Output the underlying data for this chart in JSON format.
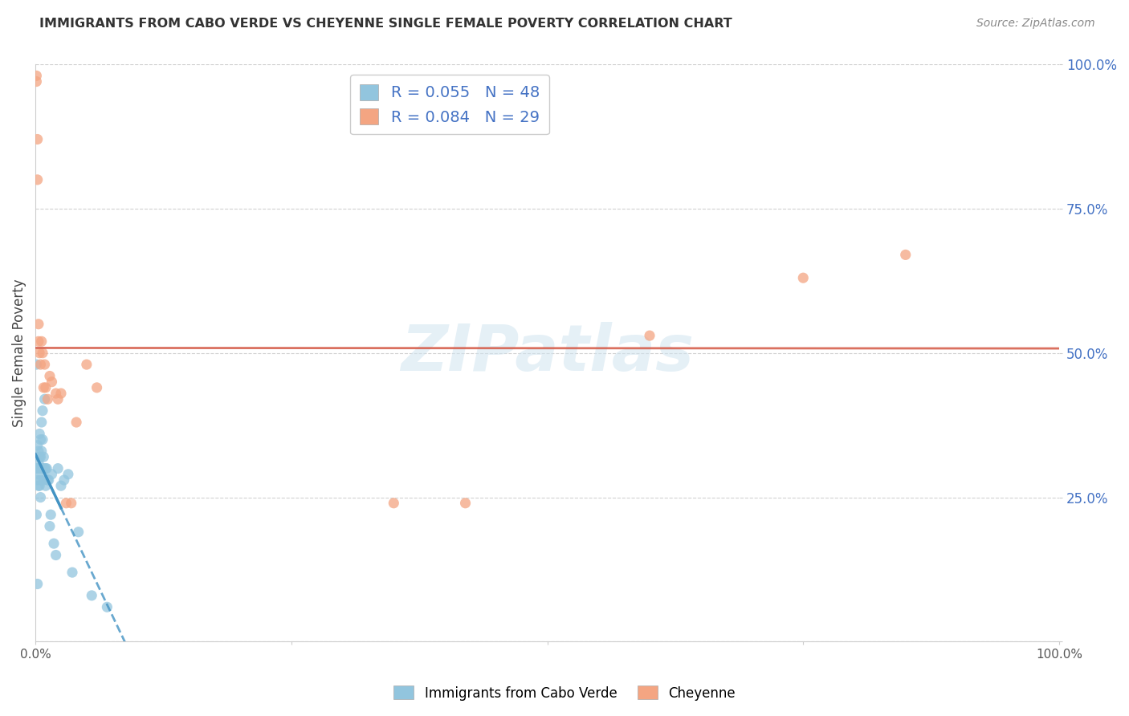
{
  "title": "IMMIGRANTS FROM CABO VERDE VS CHEYENNE SINGLE FEMALE POVERTY CORRELATION CHART",
  "source": "Source: ZipAtlas.com",
  "ylabel": "Single Female Poverty",
  "legend_label1": "Immigrants from Cabo Verde",
  "legend_label2": "Cheyenne",
  "R1": 0.055,
  "N1": 48,
  "R2": 0.084,
  "N2": 29,
  "blue_color": "#92c5de",
  "pink_color": "#f4a582",
  "blue_line_color": "#4393c3",
  "pink_line_color": "#d6604d",
  "blue_scatter_x": [
    0.001,
    0.001,
    0.001,
    0.002,
    0.002,
    0.002,
    0.002,
    0.003,
    0.003,
    0.003,
    0.003,
    0.004,
    0.004,
    0.004,
    0.004,
    0.005,
    0.005,
    0.005,
    0.005,
    0.005,
    0.006,
    0.006,
    0.006,
    0.007,
    0.007,
    0.007,
    0.008,
    0.008,
    0.009,
    0.009,
    0.01,
    0.01,
    0.011,
    0.012,
    0.013,
    0.014,
    0.015,
    0.016,
    0.018,
    0.02,
    0.022,
    0.025,
    0.028,
    0.032,
    0.036,
    0.042,
    0.055,
    0.07
  ],
  "blue_scatter_y": [
    0.48,
    0.3,
    0.22,
    0.34,
    0.3,
    0.28,
    0.1,
    0.33,
    0.31,
    0.29,
    0.27,
    0.36,
    0.32,
    0.3,
    0.27,
    0.35,
    0.32,
    0.3,
    0.28,
    0.25,
    0.38,
    0.33,
    0.3,
    0.4,
    0.35,
    0.3,
    0.32,
    0.28,
    0.42,
    0.3,
    0.3,
    0.27,
    0.3,
    0.28,
    0.28,
    0.2,
    0.22,
    0.29,
    0.17,
    0.15,
    0.3,
    0.27,
    0.28,
    0.29,
    0.12,
    0.19,
    0.08,
    0.06
  ],
  "pink_scatter_x": [
    0.001,
    0.001,
    0.002,
    0.002,
    0.003,
    0.003,
    0.004,
    0.005,
    0.006,
    0.007,
    0.008,
    0.009,
    0.01,
    0.012,
    0.014,
    0.016,
    0.02,
    0.022,
    0.025,
    0.03,
    0.035,
    0.04,
    0.05,
    0.06,
    0.35,
    0.42,
    0.6,
    0.75,
    0.85
  ],
  "pink_scatter_y": [
    0.98,
    0.97,
    0.87,
    0.8,
    0.55,
    0.52,
    0.5,
    0.48,
    0.52,
    0.5,
    0.44,
    0.48,
    0.44,
    0.42,
    0.46,
    0.45,
    0.43,
    0.42,
    0.43,
    0.24,
    0.24,
    0.38,
    0.48,
    0.44,
    0.24,
    0.24,
    0.53,
    0.63,
    0.67
  ],
  "xlim": [
    0.0,
    1.0
  ],
  "ylim": [
    0.0,
    1.0
  ],
  "y_ticks": [
    0.0,
    0.25,
    0.5,
    0.75,
    1.0
  ],
  "y_tick_labels": [
    "",
    "25.0%",
    "50.0%",
    "75.0%",
    "100.0%"
  ],
  "x_ticks": [
    0.0,
    0.25,
    0.5,
    0.75,
    1.0
  ],
  "x_tick_labels": [
    "0.0%",
    "",
    "",
    "",
    "100.0%"
  ]
}
